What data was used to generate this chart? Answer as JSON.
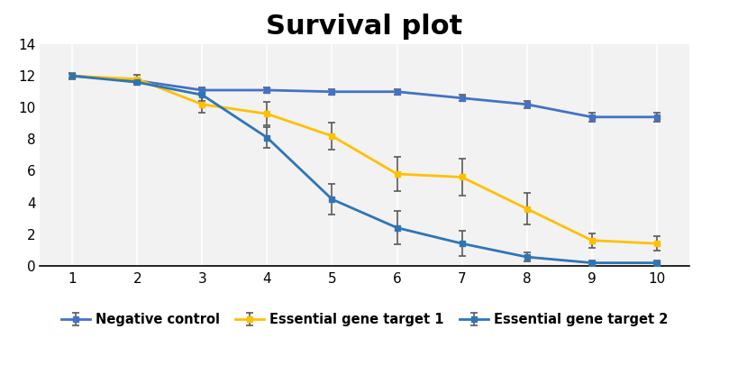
{
  "title": "Survival plot",
  "title_fontsize": 22,
  "title_fontweight": "bold",
  "x": [
    1,
    2,
    3,
    4,
    5,
    6,
    7,
    8,
    9,
    10
  ],
  "neg_control": [
    12.0,
    11.7,
    11.1,
    11.1,
    11.0,
    11.0,
    10.6,
    10.2,
    9.4,
    9.4
  ],
  "neg_control_err": [
    0.12,
    0.15,
    0.18,
    0.18,
    0.18,
    0.18,
    0.2,
    0.22,
    0.28,
    0.28
  ],
  "neg_control_color": "#4472c4",
  "ess1": [
    12.0,
    11.8,
    10.2,
    9.6,
    8.2,
    5.8,
    5.6,
    3.6,
    1.6,
    1.4
  ],
  "ess1_err": [
    0.2,
    0.25,
    0.55,
    0.75,
    0.85,
    1.1,
    1.15,
    1.0,
    0.45,
    0.45
  ],
  "ess1_color": "#ffc000",
  "ess2": [
    12.0,
    11.6,
    10.8,
    8.1,
    4.2,
    2.4,
    1.4,
    0.55,
    0.18,
    0.18
  ],
  "ess2_err": [
    0.12,
    0.18,
    0.4,
    0.65,
    0.95,
    1.05,
    0.8,
    0.3,
    0.12,
    0.12
  ],
  "ess2_color": "#2e75b6",
  "ylim": [
    0,
    14
  ],
  "yticks": [
    0,
    2,
    4,
    6,
    8,
    10,
    12,
    14
  ],
  "xticks": [
    1,
    2,
    3,
    4,
    5,
    6,
    7,
    8,
    9,
    10
  ],
  "bg_color": "#ffffff",
  "plot_bg_color": "#f2f2f2",
  "grid_color": "#ffffff",
  "marker": "s",
  "markersize": 5,
  "linewidth": 2.0,
  "legend_labels": [
    "Negative control",
    "Essential gene target 1",
    "Essential gene target 2"
  ],
  "capsize": 3,
  "ecolor": "#595959",
  "elinewidth": 1.2,
  "capthick": 1.2
}
